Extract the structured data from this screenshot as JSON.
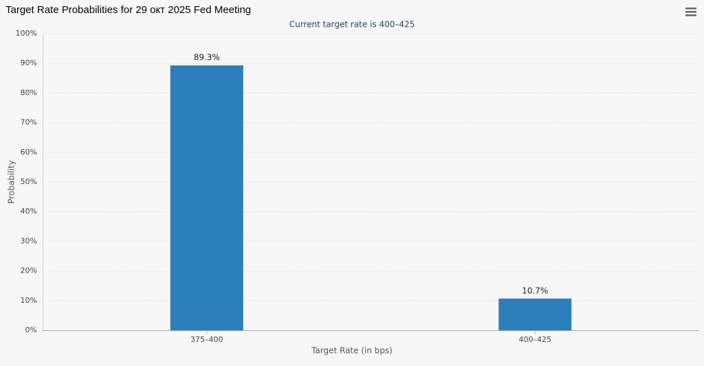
{
  "chart_data": {
    "type": "bar",
    "title": "Target Rate Probabilities for 29 окт 2025 Fed Meeting",
    "subtitle": "Current target rate is 400–425",
    "x_label": "Target Rate (in bps)",
    "y_label": "Probability",
    "categories": [
      "375–400",
      "400–425"
    ],
    "values": [
      89.3,
      10.7
    ],
    "value_labels": [
      "89.3%",
      "10.7%"
    ],
    "color": "#2b7fba",
    "ylim": [
      0,
      100
    ],
    "yticks": [
      {
        "value": 0,
        "label": "0%"
      },
      {
        "value": 10,
        "label": "10%"
      },
      {
        "value": 20,
        "label": "20%"
      },
      {
        "value": 30,
        "label": "30%"
      },
      {
        "value": 40,
        "label": "40%"
      },
      {
        "value": 50,
        "label": "50%"
      },
      {
        "value": 60,
        "label": "60%"
      },
      {
        "value": 70,
        "label": "70%"
      },
      {
        "value": 80,
        "label": "80%"
      },
      {
        "value": 90,
        "label": "90%"
      },
      {
        "value": 100,
        "label": "100%"
      }
    ],
    "grid": true
  }
}
